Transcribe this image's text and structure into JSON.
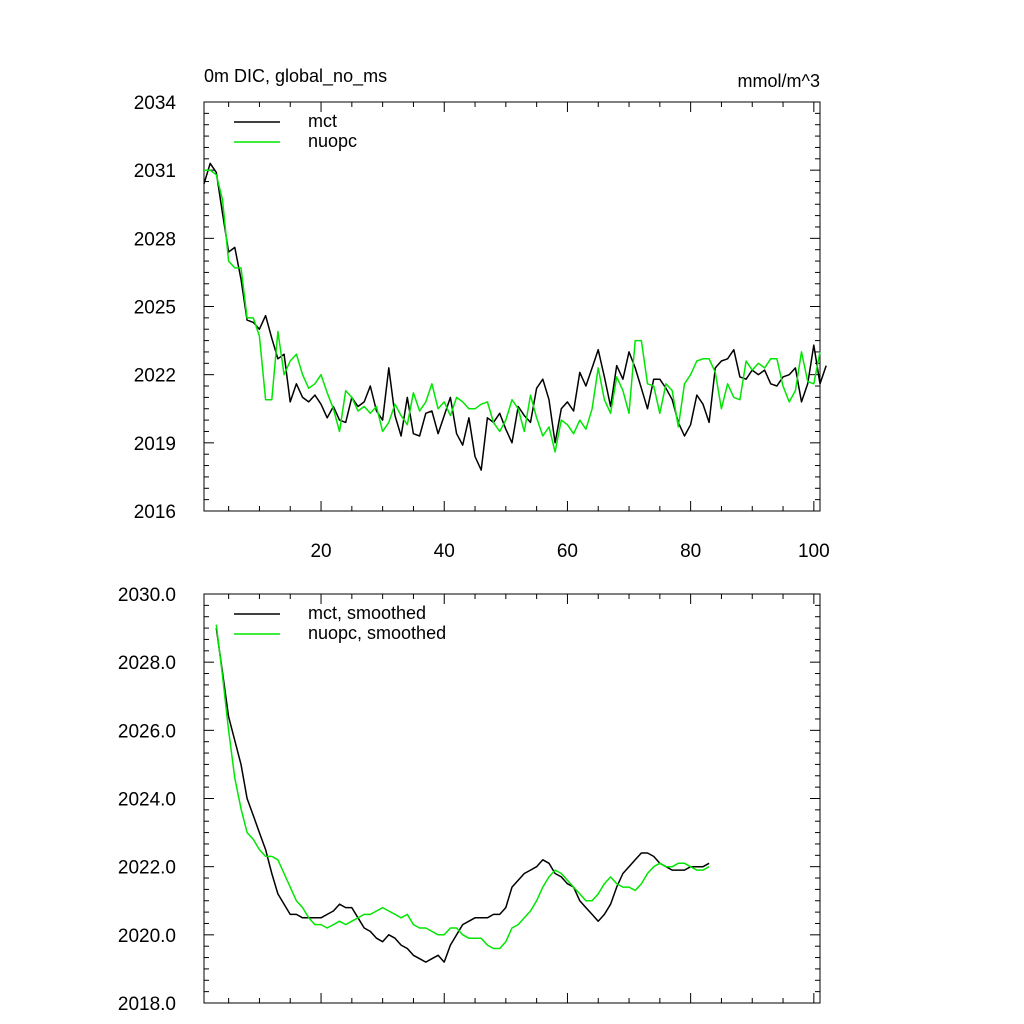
{
  "figure": {
    "title_left": "0m DIC, global_no_ms",
    "title_right": "mmol/m^3"
  },
  "colors": {
    "mct": "#000000",
    "nuopc": "#00e600",
    "axis": "#000000"
  },
  "chart_data": [
    {
      "type": "line",
      "title": "0m DIC, global_no_ms",
      "units": "mmol/m^3",
      "xlim": [
        1,
        101
      ],
      "ylim": [
        2016,
        2034
      ],
      "xticks": [
        20,
        40,
        60,
        80,
        100
      ],
      "xticklabels": [
        "20",
        "40",
        "60",
        "80",
        "100"
      ],
      "yticks": [
        2016,
        2019,
        2022,
        2025,
        2028,
        2031,
        2034
      ],
      "yticklabels": [
        "2016",
        "2019",
        "2022",
        "2025",
        "2028",
        "2031",
        "2034"
      ],
      "legend_position": "top-left",
      "series": [
        {
          "name": "mct",
          "color": "#000000",
          "x_start": 1,
          "values": [
            2030.4,
            2031.3,
            2030.9,
            2029.1,
            2027.4,
            2027.6,
            2026.2,
            2024.4,
            2024.3,
            2024.0,
            2024.6,
            2023.6,
            2022.7,
            2022.9,
            2020.8,
            2021.6,
            2021.0,
            2020.8,
            2021.1,
            2020.7,
            2020.1,
            2020.6,
            2020.0,
            2019.9,
            2021.0,
            2020.6,
            2020.8,
            2021.5,
            2020.4,
            2020.0,
            2022.3,
            2020.2,
            2019.3,
            2021.0,
            2019.4,
            2019.3,
            2020.3,
            2020.4,
            2019.4,
            2020.2,
            2021.0,
            2019.4,
            2018.9,
            2020.1,
            2018.4,
            2017.8,
            2020.1,
            2019.9,
            2020.3,
            2019.6,
            2019.0,
            2020.6,
            2020.2,
            2019.9,
            2021.4,
            2021.8,
            2020.9,
            2019.0,
            2020.5,
            2020.8,
            2020.4,
            2022.1,
            2021.5,
            2022.3,
            2023.1,
            2021.9,
            2020.6,
            2022.4,
            2021.8,
            2023.0,
            2022.3,
            2021.4,
            2020.5,
            2021.8,
            2021.8,
            2021.4,
            2020.9,
            2019.9,
            2019.3,
            2019.8,
            2021.1,
            2020.7,
            2019.9,
            2022.3,
            2022.6,
            2022.7,
            2023.1,
            2021.9,
            2021.8,
            2022.2,
            2022.0,
            2022.2,
            2021.6,
            2021.5,
            2021.9,
            2022.0,
            2022.3,
            2020.8,
            2021.6,
            2023.3,
            2021.6,
            2022.4
          ]
        },
        {
          "name": "nuopc",
          "color": "#00e600",
          "x_start": 1,
          "values": [
            2031.0,
            2031.0,
            2030.8,
            2029.7,
            2027.0,
            2026.7,
            2026.7,
            2024.5,
            2024.5,
            2023.7,
            2020.9,
            2020.9,
            2023.9,
            2022.0,
            2022.6,
            2022.9,
            2022.0,
            2021.4,
            2021.6,
            2022.0,
            2021.2,
            2020.5,
            2019.5,
            2021.3,
            2021.0,
            2020.4,
            2020.6,
            2020.3,
            2020.6,
            2019.5,
            2019.9,
            2020.7,
            2020.2,
            2019.8,
            2021.2,
            2020.4,
            2020.8,
            2021.6,
            2020.5,
            2020.8,
            2020.2,
            2021.0,
            2020.8,
            2020.5,
            2020.5,
            2020.7,
            2020.8,
            2019.9,
            2019.5,
            2020.0,
            2020.9,
            2020.5,
            2019.5,
            2021.1,
            2020.1,
            2019.3,
            2019.7,
            2018.6,
            2020.0,
            2019.8,
            2019.4,
            2020.0,
            2019.6,
            2020.5,
            2022.3,
            2020.9,
            2020.3,
            2021.9,
            2021.3,
            2020.3,
            2023.5,
            2023.5,
            2021.6,
            2021.5,
            2020.3,
            2021.6,
            2021.3,
            2019.7,
            2021.6,
            2022.0,
            2022.6,
            2022.7,
            2022.7,
            2022.1,
            2020.5,
            2021.6,
            2021.0,
            2020.9,
            2022.6,
            2022.2,
            2022.5,
            2022.3,
            2022.7,
            2022.7,
            2021.5,
            2020.8,
            2021.3,
            2023.0,
            2021.7,
            2021.6,
            2023.0
          ]
        }
      ]
    },
    {
      "type": "line",
      "xlim": [
        1,
        101
      ],
      "ylim": [
        2018.0,
        2030.0
      ],
      "xticks": [
        20,
        40,
        60,
        80,
        100
      ],
      "xticklabels": [],
      "yticks": [
        2018.0,
        2020.0,
        2022.0,
        2024.0,
        2026.0,
        2028.0,
        2030.0
      ],
      "yticklabels": [
        "2018.0",
        "2020.0",
        "2022.0",
        "2024.0",
        "2026.0",
        "2028.0",
        "2030.0"
      ],
      "legend_position": "top-left",
      "series": [
        {
          "name": "mct, smoothed",
          "color": "#000000",
          "x_start": 3,
          "values": [
            2029.0,
            2027.7,
            2026.4,
            2025.7,
            2025.0,
            2024.0,
            2023.5,
            2023.0,
            2022.5,
            2021.8,
            2021.2,
            2020.9,
            2020.6,
            2020.6,
            2020.5,
            2020.5,
            2020.5,
            2020.5,
            2020.6,
            2020.7,
            2020.9,
            2020.8,
            2020.8,
            2020.5,
            2020.2,
            2020.1,
            2019.9,
            2019.8,
            2020.0,
            2019.9,
            2019.7,
            2019.6,
            2019.4,
            2019.3,
            2019.2,
            2019.3,
            2019.4,
            2019.2,
            2019.7,
            2020.0,
            2020.3,
            2020.4,
            2020.5,
            2020.5,
            2020.5,
            2020.6,
            2020.6,
            2020.8,
            2021.4,
            2021.6,
            2021.8,
            2021.9,
            2022.0,
            2022.2,
            2022.1,
            2021.8,
            2021.7,
            2021.5,
            2021.4,
            2021.0,
            2020.8,
            2020.6,
            2020.4,
            2020.6,
            2020.9,
            2021.4,
            2021.8,
            2022.0,
            2022.2,
            2022.4,
            2022.4,
            2022.3,
            2022.1,
            2022.0,
            2021.9,
            2021.9,
            2021.9,
            2022.0,
            2022.0,
            2022.0,
            2022.1
          ]
        },
        {
          "name": "nuopc, smoothed",
          "color": "#00e600",
          "x_start": 3,
          "values": [
            2029.1,
            2027.6,
            2026.0,
            2024.6,
            2023.7,
            2023.0,
            2022.8,
            2022.5,
            2022.3,
            2022.3,
            2022.2,
            2021.8,
            2021.4,
            2021.0,
            2020.8,
            2020.5,
            2020.3,
            2020.3,
            2020.2,
            2020.3,
            2020.4,
            2020.3,
            2020.4,
            2020.5,
            2020.6,
            2020.6,
            2020.7,
            2020.8,
            2020.7,
            2020.6,
            2020.5,
            2020.6,
            2020.3,
            2020.2,
            2020.2,
            2020.1,
            2020.0,
            2020.0,
            2020.2,
            2020.2,
            2020.0,
            2019.9,
            2019.9,
            2019.9,
            2019.7,
            2019.6,
            2019.6,
            2019.8,
            2020.2,
            2020.3,
            2020.5,
            2020.7,
            2021.0,
            2021.4,
            2021.7,
            2021.9,
            2021.8,
            2021.6,
            2021.4,
            2021.2,
            2021.0,
            2021.0,
            2021.2,
            2021.5,
            2021.7,
            2021.5,
            2021.4,
            2021.4,
            2021.3,
            2021.5,
            2021.8,
            2022.0,
            2022.1,
            2022.0,
            2022.0,
            2022.1,
            2022.1,
            2022.0,
            2021.9,
            2021.9,
            2022.0
          ]
        }
      ]
    }
  ]
}
